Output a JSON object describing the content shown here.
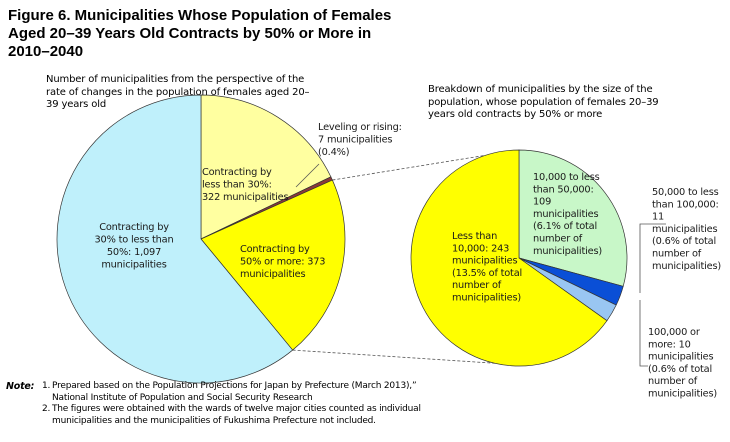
{
  "title_lines": [
    "Figure 6. Municipalities Whose Population of Females",
    "Aged 20–39 Years Old Contracts by 50% or More in",
    "2010–2040"
  ],
  "left_subtitle_lines": [
    "Number of municipalities from the perspective of the",
    "rate of changes in the population of females aged 20–",
    "39 years old"
  ],
  "right_subtitle_lines": [
    "Breakdown of municipalities by the size of the",
    "population, whose population of females 20–39",
    "years old contracts by 50% or more"
  ],
  "notes": {
    "heading": "Note",
    "items": [
      {
        "number": "1.",
        "lines": [
          "Prepared based on the Population Projections for Japan by Prefecture (March 2013),”",
          "National Institute of Population and Social Security Research"
        ]
      },
      {
        "number": "2.",
        "lines": [
          "The figures were obtained with the wards of twelve major cities counted as individual",
          "municipalities and the municipalities of Fukushima Prefecture not included."
        ]
      }
    ]
  },
  "chart_data": [
    {
      "type": "pie",
      "slices": [
        {
          "key": "contracting-lt30",
          "value": 322,
          "color": "#ffffa0",
          "label_lines": [
            "Contracting by",
            "less than 30%:",
            "322 municipalities"
          ]
        },
        {
          "key": "leveling",
          "value": 7,
          "color": "#8b3a3a",
          "label_lines": [
            "Leveling or rising:",
            "7 municipalities",
            "(0.4%)"
          ]
        },
        {
          "key": "contracting-50plus",
          "value": 373,
          "color": "#ffff00",
          "label_lines": [
            "Contracting by",
            "50% or more: 373",
            "municipalities"
          ]
        },
        {
          "key": "contracting-30-50",
          "value": 1097,
          "color": "#bff0fb",
          "label_lines": [
            "Contracting by",
            "30% to less than",
            "50%: 1,097",
            "municipalities"
          ]
        }
      ]
    },
    {
      "type": "pie",
      "slices": [
        {
          "key": "10000-50000",
          "value": 109,
          "color": "#c8f7c8",
          "label_lines": [
            "10,000 to less",
            "than 50,000:",
            "109",
            "municipalities",
            "(6.1% of total",
            "number of",
            "municipalities)"
          ]
        },
        {
          "key": "50000-100000",
          "value": 11,
          "color": "#0a4fd6",
          "label_lines": [
            "50,000 to less",
            "than 100,000:",
            "11",
            "municipalities",
            "(0.6% of total",
            "number of",
            "municipalities)"
          ]
        },
        {
          "key": "100000plus",
          "value": 10,
          "color": "#99c6f2",
          "label_lines": [
            "100,000 or",
            "more: 10",
            "municipalities",
            "(0.6% of total",
            "number of",
            "municipalities)"
          ]
        },
        {
          "key": "lt10000",
          "value": 243,
          "color": "#ffff00",
          "label_lines": [
            "Less than",
            "10,000: 243",
            "municipalities",
            "(13.5% of total",
            "number of",
            "municipalities)"
          ]
        }
      ]
    }
  ]
}
